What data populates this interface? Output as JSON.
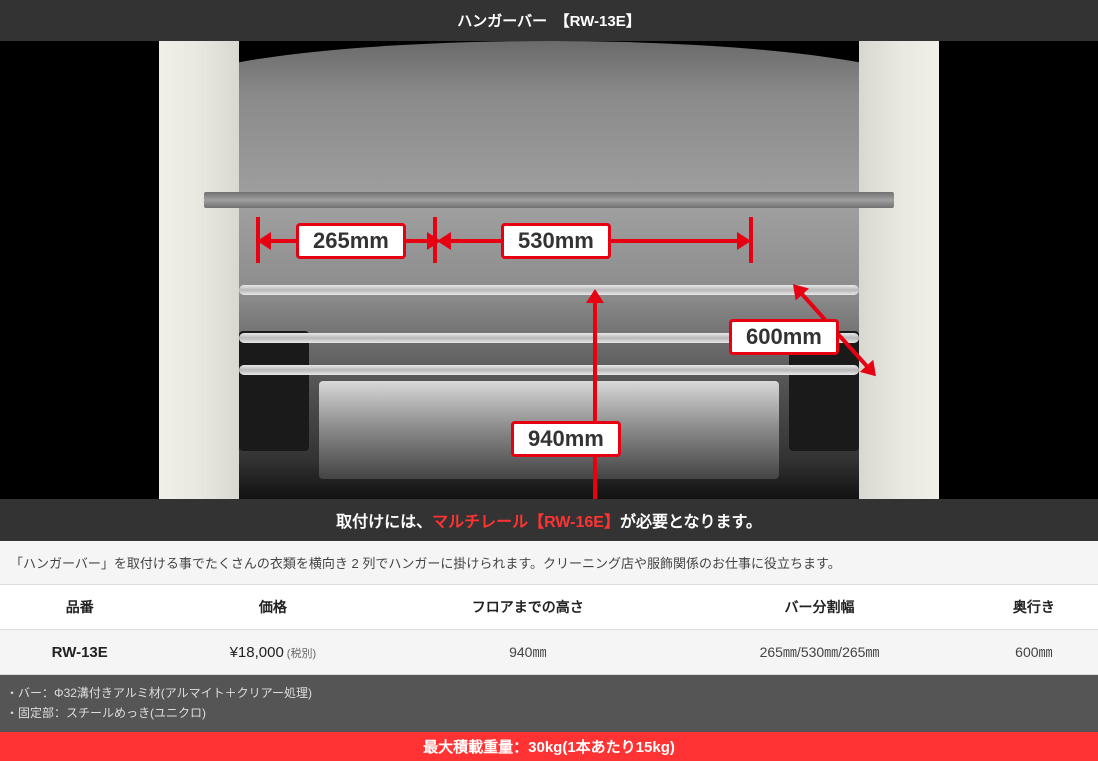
{
  "title": "ハンガーバー　【RW-13E】",
  "image": {
    "background_color": "#000000",
    "dimensions": {
      "d265": {
        "label": "265mm",
        "border_color": "#e60012"
      },
      "d530": {
        "label": "530mm",
        "border_color": "#e60012"
      },
      "d600": {
        "label": "600mm",
        "border_color": "#e60012"
      },
      "d940": {
        "label": "940mm",
        "border_color": "#e60012"
      }
    },
    "arrow_color": "#e60012",
    "label_bg": "#ffffff",
    "label_border_width": 3,
    "label_fontsize": 22
  },
  "notice": {
    "prefix": "取付けには、",
    "highlighted": "マルチレール【RW-16E】",
    "suffix": "が必要となります。",
    "highlight_color": "#ff3333",
    "bg_color": "#333333",
    "text_color": "#ffffff"
  },
  "description": "「ハンガーバー」を取付ける事でたくさんの衣類を横向き 2 列でハンガーに掛けられます。クリーニング店や服飾関係のお仕事に役立ちます。",
  "spec_table": {
    "columns": [
      "品番",
      "価格",
      "フロアまでの高さ",
      "バー分割幅",
      "奥行き"
    ],
    "row": {
      "model": "RW-13E",
      "price": "¥18,000",
      "price_note": "(税別)",
      "floor_height": "940㎜",
      "bar_split": "265㎜/530㎜/265㎜",
      "depth": "600㎜"
    },
    "header_bg": "#ffffff",
    "row_bg": "#f5f5f5",
    "border_color": "#dddddd"
  },
  "materials": {
    "bg_color": "#555555",
    "text_color": "#dddddd",
    "line1": "・バー：Φ32溝付きアルミ材(アルマイト＋クリアー処理)",
    "line2": "・固定部：スチールめっき(ユニクロ)"
  },
  "max_load": {
    "text": "最大積載重量：30kg(1本あたり15kg)",
    "bg_color": "#ff3333",
    "text_color": "#ffffff"
  }
}
